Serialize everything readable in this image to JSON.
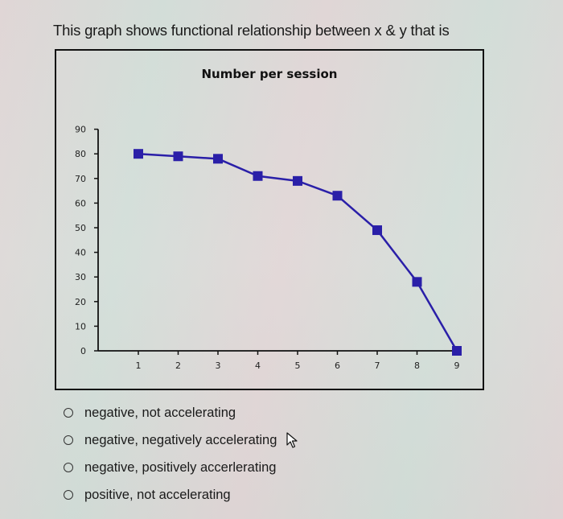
{
  "question": {
    "text": "This graph shows functional relationship between x & y that is"
  },
  "chart_data": {
    "type": "line",
    "title": "Number per session",
    "xlabel": "",
    "ylabel": "",
    "categories": [
      "1",
      "2",
      "3",
      "4",
      "5",
      "6",
      "7",
      "8",
      "9"
    ],
    "x": [
      1,
      2,
      3,
      4,
      5,
      6,
      7,
      8,
      9
    ],
    "series": [
      {
        "name": "Number per session",
        "values": [
          80,
          79,
          78,
          71,
          69,
          63,
          49,
          28,
          0
        ],
        "color": "#2a1fa8",
        "marker": "square"
      }
    ],
    "ylim": [
      0,
      90
    ],
    "yticks": [
      0,
      10,
      20,
      30,
      40,
      50,
      60,
      70,
      80,
      90
    ],
    "xticks": [
      1,
      2,
      3,
      4,
      5,
      6,
      7,
      8,
      9
    ],
    "grid": false,
    "legend": "none"
  },
  "options": [
    {
      "label": "negative, not accelerating",
      "selected": false
    },
    {
      "label": "negative, negatively accelerating",
      "selected": false
    },
    {
      "label": "negative, positively accerlerating",
      "selected": false
    },
    {
      "label": "positive, not accelerating",
      "selected": false
    }
  ],
  "colors": {
    "line": "#2a1fa8",
    "axis": "#111111",
    "text": "#1a1a1a"
  }
}
